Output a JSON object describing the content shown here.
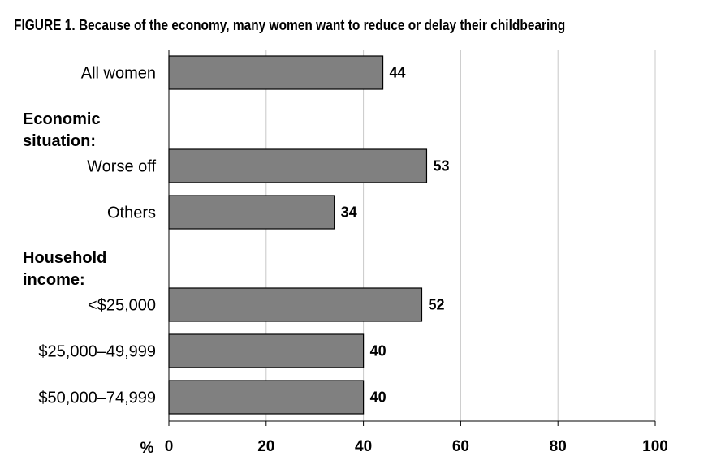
{
  "title": "FIGURE 1. Because of the economy, many women want to reduce or delay their childbearing",
  "chart_data": {
    "type": "bar",
    "orientation": "horizontal",
    "title": "FIGURE 1. Because of the economy, many women want to reduce or delay their childbearing",
    "xlabel": "%",
    "xlim": [
      0,
      100
    ],
    "xticks": [
      0,
      20,
      40,
      60,
      80,
      100
    ],
    "grid": true,
    "bar_color": "#808080",
    "groups": [
      {
        "label": "",
        "lines": [],
        "categories": [
          "All women"
        ],
        "values": [
          44
        ]
      },
      {
        "label": "Economic situation:",
        "lines": [
          "Economic",
          "situation:"
        ],
        "categories": [
          "Worse off",
          "Others"
        ],
        "values": [
          53,
          34
        ]
      },
      {
        "label": "Household income:",
        "lines": [
          "Household",
          "income:"
        ],
        "categories": [
          "<$25,000",
          "$25,000–49,999",
          "$50,000–74,999"
        ],
        "values": [
          52,
          40,
          40
        ]
      }
    ]
  }
}
